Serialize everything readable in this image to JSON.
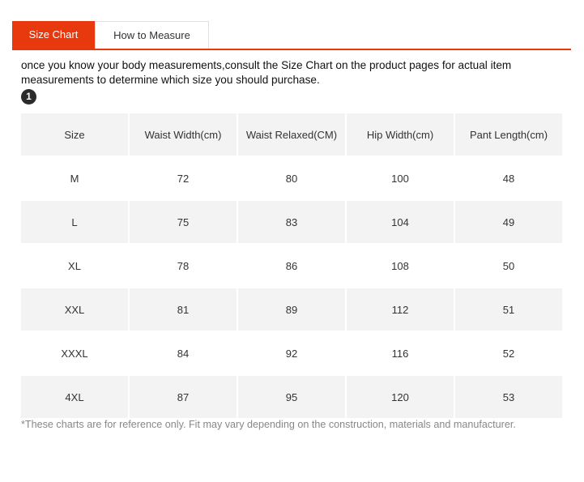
{
  "tabs": [
    {
      "label": "Size Chart",
      "active": true
    },
    {
      "label": "How to Measure",
      "active": false
    }
  ],
  "accent_color": "#e8380d",
  "intro_text": "once you know your body measurements,consult the Size Chart on the product pages for actual item measurements to determine which size you should purchase.",
  "step_badge": "1",
  "table": {
    "headers": [
      "Size",
      "Waist Width(cm)",
      "Waist Relaxed(CM)",
      "Hip Width(cm)",
      "Pant Length(cm)"
    ],
    "rows": [
      [
        "M",
        "72",
        "80",
        "100",
        "48"
      ],
      [
        "L",
        "75",
        "83",
        "104",
        "49"
      ],
      [
        "XL",
        "78",
        "86",
        "108",
        "50"
      ],
      [
        "XXL",
        "81",
        "89",
        "112",
        "51"
      ],
      [
        "XXXL",
        "84",
        "92",
        "116",
        "52"
      ],
      [
        "4XL",
        "87",
        "95",
        "120",
        "53"
      ]
    ]
  },
  "footnote": "*These charts are for reference only. Fit may vary depending on the construction, materials and manufacturer."
}
